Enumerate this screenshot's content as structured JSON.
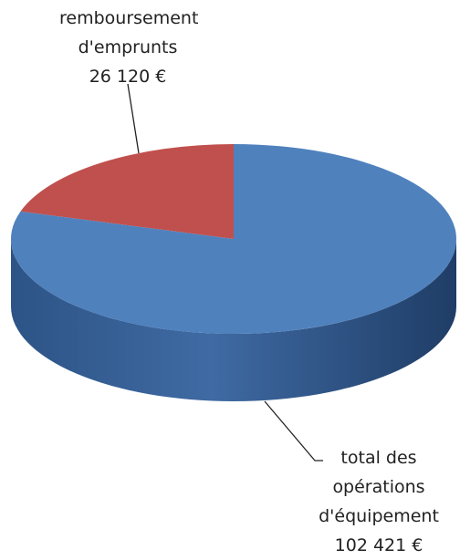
{
  "chart_data": {
    "type": "pie3d",
    "categories": [
      "remboursement d'emprunts",
      "total des opérations d'équipement"
    ],
    "values": [
      26120,
      102421
    ],
    "value_labels": [
      "26 120 €",
      "102 421 €"
    ],
    "colors": [
      "#c0504d",
      "#4f81bd"
    ]
  }
}
